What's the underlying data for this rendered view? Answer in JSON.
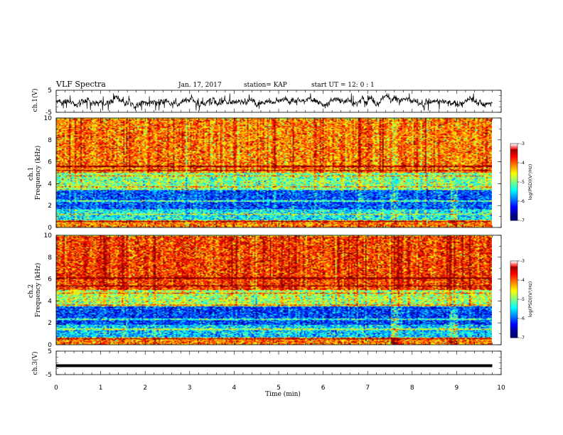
{
  "header": {
    "title": "VLF Spectra",
    "date": "Jan. 17, 2017",
    "station": "station= KAP",
    "start": "start  UT =   12: 0  : 1"
  },
  "colors": {
    "spectrogram_scale": [
      "#00007f",
      "#0000ff",
      "#007fff",
      "#00ffff",
      "#00ff7f",
      "#7fff00",
      "#ffff00",
      "#ff7f00",
      "#ff0000",
      "#ffffff"
    ],
    "background": "#ffffff",
    "trace": "#000000"
  },
  "chart_data": [
    {
      "type": "line",
      "name": "ch1-voltage",
      "ylabel": "ch.1(V)",
      "xlim": [
        0,
        10
      ],
      "ylim": [
        -5,
        5
      ],
      "yticks": [
        "5",
        "-5"
      ],
      "x_start": 0,
      "x_end": 9.8,
      "y_range_approx": [
        -3,
        3
      ],
      "note": "noisy broadband waveform around 0 V"
    },
    {
      "type": "heatmap",
      "name": "ch1-spectrogram",
      "ylabel": "ch.1\nFrequency (kHz)",
      "xlim": [
        0,
        10
      ],
      "ylim": [
        0,
        10
      ],
      "yticks": [
        "0",
        "2",
        "4",
        "6",
        "8",
        "10"
      ],
      "colorbar": {
        "label": "log(PSD)(V²/Hz)",
        "range": [
          -7,
          -3
        ],
        "ticks": [
          "-3",
          "-4",
          "-5",
          "-6",
          "-7"
        ]
      },
      "bands_logpsd": [
        {
          "f_min": 0.0,
          "f_max": 0.6,
          "level": -4.0
        },
        {
          "f_min": 0.6,
          "f_max": 1.6,
          "level": -5.5
        },
        {
          "f_min": 1.6,
          "f_max": 3.4,
          "level": -6.2
        },
        {
          "f_min": 3.4,
          "f_max": 5.0,
          "level": -5.0
        },
        {
          "f_min": 5.0,
          "f_max": 10.0,
          "level": -4.0
        }
      ],
      "horizontal_lines_khz": [
        0.5,
        1.2,
        2.4,
        3.7,
        4.7,
        5.2,
        5.6
      ],
      "burst_times_min": [
        8.95,
        7.6
      ]
    },
    {
      "type": "heatmap",
      "name": "ch2-spectrogram",
      "ylabel": "ch.2\nFrequency (kHz)",
      "xlim": [
        0,
        10
      ],
      "ylim": [
        0,
        10
      ],
      "yticks": [
        "0",
        "2",
        "4",
        "6",
        "8",
        "10"
      ],
      "colorbar": {
        "label": "log(PSD)(V²/Hz)",
        "range": [
          -7,
          -3
        ],
        "ticks": [
          "-3",
          "-4",
          "-5",
          "-6",
          "-7"
        ]
      },
      "bands_logpsd": [
        {
          "f_min": 0.0,
          "f_max": 0.6,
          "level": -4.0
        },
        {
          "f_min": 0.6,
          "f_max": 1.8,
          "level": -5.7
        },
        {
          "f_min": 1.8,
          "f_max": 3.5,
          "level": -6.3
        },
        {
          "f_min": 3.5,
          "f_max": 5.0,
          "level": -4.8
        },
        {
          "f_min": 5.0,
          "f_max": 10.0,
          "level": -3.7
        }
      ],
      "horizontal_lines_khz": [
        0.5,
        1.4,
        2.3,
        3.6,
        4.7,
        5.4,
        6.1
      ],
      "burst_times_min": [
        8.95,
        7.6
      ]
    },
    {
      "type": "line",
      "name": "ch3-voltage",
      "ylabel": "ch.3(V)",
      "xlim": [
        0,
        10
      ],
      "ylim": [
        -5,
        5
      ],
      "yticks": [
        "5",
        "-5"
      ],
      "x_start": 0,
      "x_end": 9.8,
      "constant_value": -1.2,
      "note": "flat thick line"
    }
  ],
  "xaxis": {
    "label": "Time  (min)",
    "ticks": [
      "0",
      "1",
      "2",
      "3",
      "4",
      "5",
      "6",
      "7",
      "8",
      "9",
      "10"
    ]
  }
}
